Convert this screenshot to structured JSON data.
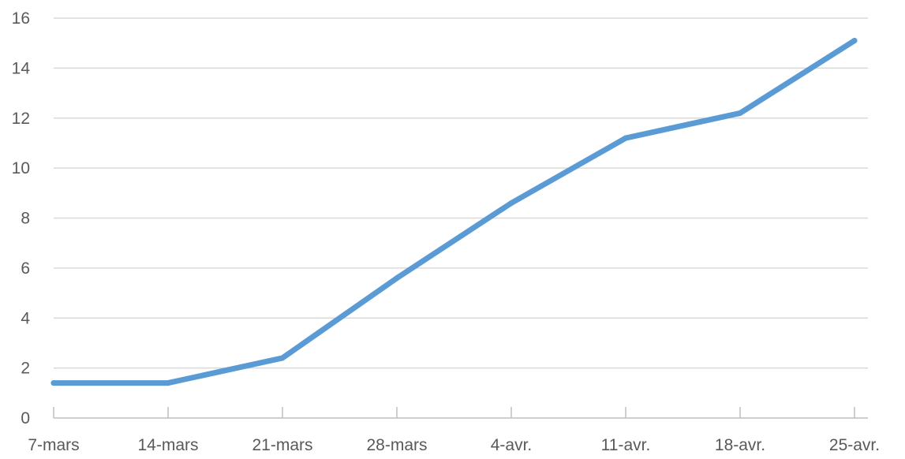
{
  "chart_data": {
    "type": "line",
    "categories": [
      "7-mars",
      "14-mars",
      "21-mars",
      "28-mars",
      "4-avr.",
      "11-avr.",
      "18-avr.",
      "25-avr."
    ],
    "series": [
      {
        "values": [
          1.4,
          1.4,
          2.4,
          5.6,
          8.6,
          11.2,
          12.2,
          15.1
        ]
      }
    ],
    "yticks": [
      "0",
      "2",
      "4",
      "6",
      "8",
      "10",
      "12",
      "14",
      "16"
    ],
    "ylim": [
      0,
      16
    ],
    "grid": true,
    "legend": "none",
    "colors": {
      "series": "#5b9bd5",
      "grid": "#d9d9d9",
      "axis": "#bfbfbf",
      "text": "#595959"
    }
  }
}
